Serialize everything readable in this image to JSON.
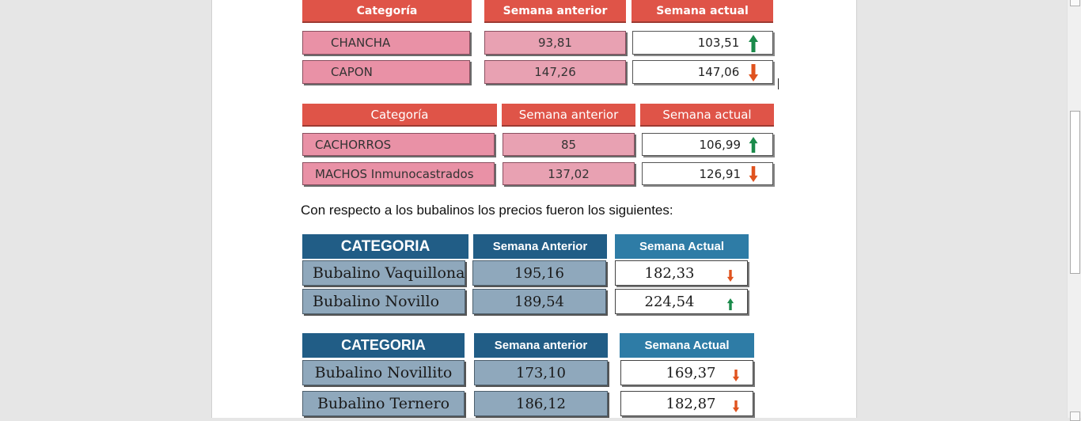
{
  "table1": {
    "headers": [
      "Categoría",
      "Semana anterior",
      "Semana actual"
    ],
    "rows": [
      {
        "category": "CHANCHA",
        "previous": "93,81",
        "current": "103,51",
        "trend": "up"
      },
      {
        "category": "CAPON",
        "previous": "147,26",
        "current": "147,06",
        "trend": "down"
      }
    ]
  },
  "table2": {
    "headers": [
      "Categoría",
      "Semana anterior",
      "Semana actual"
    ],
    "rows": [
      {
        "category": "CACHORROS",
        "previous": "85",
        "current": "106,99",
        "trend": "up"
      },
      {
        "category": "MACHOS Inmunocastrados",
        "previous": "137,02",
        "current": "126,91",
        "trend": "down"
      }
    ]
  },
  "paragraph": "Con respecto a los bubalinos los precios fueron los siguientes:",
  "table3": {
    "headers": [
      "CATEGORIA",
      "Semana Anterior",
      "Semana Actual"
    ],
    "rows": [
      {
        "category": "Bubalino Vaquillona",
        "previous": "195,16",
        "current": "182,33",
        "trend": "down"
      },
      {
        "category": "Bubalino Novillo",
        "previous": "189,54",
        "current": "224,54",
        "trend": "up"
      }
    ]
  },
  "table4": {
    "headers": [
      "CATEGORIA",
      "Semana anterior",
      "Semana Actual"
    ],
    "rows": [
      {
        "category": "Bubalino Novillito",
        "previous": "173,10",
        "current": "169,37",
        "trend": "down"
      },
      {
        "category": "Bubalino Ternero",
        "previous": "186,12",
        "current": "182,87",
        "trend": "down"
      }
    ]
  },
  "colors": {
    "up": "#1a8a4a",
    "down": "#e0531f"
  }
}
